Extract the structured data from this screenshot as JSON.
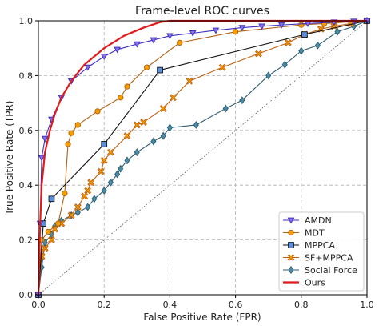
{
  "chart_data": {
    "type": "line",
    "title": "Frame-level ROC curves",
    "xlabel": "False Positive Rate (FPR)",
    "ylabel": "True Positive Rate (TPR)",
    "xlim": [
      0,
      1
    ],
    "ylim": [
      0,
      1
    ],
    "x_ticks": [
      "0.0",
      "0.2",
      "0.4",
      "0.6",
      "0.8",
      "1.0"
    ],
    "y_ticks": [
      "0.0",
      "0.2",
      "0.4",
      "0.6",
      "0.8",
      "1.0"
    ],
    "grid": true,
    "legend_position": "bottom-right",
    "diagonal_reference": true,
    "series": [
      {
        "name": "AMDN",
        "color": "#3a2ec0",
        "marker_fill": "#8a6ee8",
        "marker": "triangle-down",
        "x": [
          0.0,
          0.005,
          0.01,
          0.02,
          0.04,
          0.07,
          0.1,
          0.15,
          0.2,
          0.24,
          0.3,
          0.35,
          0.4,
          0.47,
          0.54,
          0.62,
          0.68,
          0.74,
          0.82,
          0.9,
          0.96,
          1.0
        ],
        "y": [
          0.0,
          0.26,
          0.5,
          0.57,
          0.64,
          0.72,
          0.78,
          0.83,
          0.87,
          0.895,
          0.915,
          0.93,
          0.945,
          0.955,
          0.965,
          0.975,
          0.98,
          0.985,
          0.99,
          0.995,
          0.998,
          1.0
        ]
      },
      {
        "name": "MDT",
        "color": "#b06010",
        "marker_fill": "#f4a000",
        "marker": "circle",
        "x": [
          0.0,
          0.01,
          0.03,
          0.06,
          0.08,
          0.09,
          0.1,
          0.12,
          0.18,
          0.25,
          0.27,
          0.33,
          0.43,
          0.6,
          0.8,
          0.87,
          1.0
        ],
        "y": [
          0.0,
          0.2,
          0.23,
          0.26,
          0.37,
          0.55,
          0.59,
          0.62,
          0.67,
          0.72,
          0.76,
          0.83,
          0.92,
          0.96,
          0.985,
          0.99,
          1.0
        ]
      },
      {
        "name": "MPPCA",
        "color": "#111111",
        "marker_fill": "#5b8fdc",
        "marker": "square",
        "x": [
          0.0,
          0.015,
          0.04,
          0.2,
          0.37,
          0.81,
          1.0
        ],
        "y": [
          0.0,
          0.26,
          0.35,
          0.55,
          0.82,
          0.95,
          1.0
        ]
      },
      {
        "name": "SF+MPPCA",
        "color": "#c06010",
        "marker_fill": "#f4a000",
        "marker": "x-filled",
        "x": [
          0.0,
          0.01,
          0.02,
          0.04,
          0.05,
          0.07,
          0.1,
          0.12,
          0.14,
          0.15,
          0.16,
          0.19,
          0.2,
          0.22,
          0.27,
          0.3,
          0.32,
          0.38,
          0.41,
          0.46,
          0.56,
          0.67,
          0.76,
          0.81,
          0.86,
          0.9,
          0.95,
          1.0
        ],
        "y": [
          0.0,
          0.14,
          0.17,
          0.2,
          0.24,
          0.26,
          0.29,
          0.32,
          0.36,
          0.38,
          0.41,
          0.45,
          0.49,
          0.52,
          0.58,
          0.62,
          0.63,
          0.68,
          0.72,
          0.78,
          0.83,
          0.88,
          0.92,
          0.95,
          0.97,
          0.98,
          0.99,
          1.0
        ]
      },
      {
        "name": "Social Force",
        "color": "#2d5b6e",
        "marker_fill": "#4a8ca8",
        "marker": "diamond",
        "x": [
          0.0,
          0.01,
          0.02,
          0.04,
          0.05,
          0.07,
          0.1,
          0.12,
          0.15,
          0.17,
          0.2,
          0.22,
          0.24,
          0.25,
          0.27,
          0.3,
          0.35,
          0.38,
          0.4,
          0.48,
          0.57,
          0.62,
          0.7,
          0.75,
          0.8,
          0.85,
          0.91,
          0.96,
          1.0
        ],
        "y": [
          0.0,
          0.1,
          0.19,
          0.22,
          0.25,
          0.27,
          0.29,
          0.3,
          0.32,
          0.35,
          0.38,
          0.41,
          0.44,
          0.46,
          0.49,
          0.52,
          0.56,
          0.58,
          0.61,
          0.62,
          0.68,
          0.71,
          0.8,
          0.84,
          0.89,
          0.91,
          0.96,
          0.98,
          1.0
        ]
      },
      {
        "name": "Ours",
        "color": "#e11a1a",
        "marker_fill": "",
        "marker": "none",
        "x": [
          0.0,
          0.005,
          0.01,
          0.02,
          0.035,
          0.05,
          0.07,
          0.1,
          0.14,
          0.2,
          0.26,
          0.32,
          0.37,
          0.4,
          1.0
        ],
        "y": [
          0.0,
          0.25,
          0.4,
          0.52,
          0.6,
          0.66,
          0.72,
          0.78,
          0.84,
          0.9,
          0.945,
          0.975,
          0.995,
          1.0,
          1.0
        ]
      }
    ]
  }
}
